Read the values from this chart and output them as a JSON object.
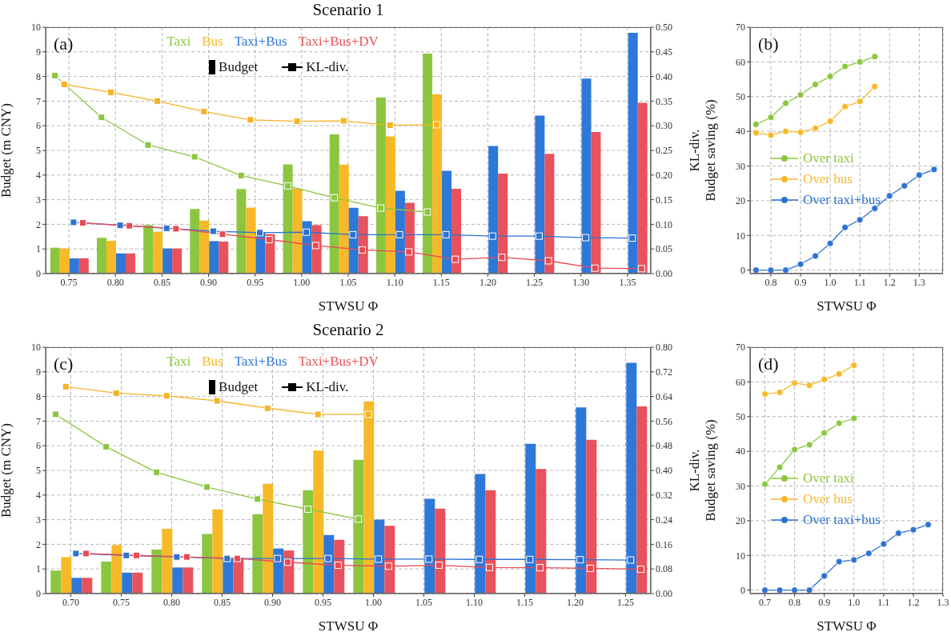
{
  "chart_data": [
    {
      "type": "bar",
      "title": "Scenario 1",
      "categories": [
        "0.75",
        "0.80",
        "0.85",
        "0.90",
        "0.95",
        "1.00",
        "1.05",
        "1.10",
        "1.15",
        "1.20",
        "1.25",
        "1.30",
        "1.35"
      ],
      "xlabel": "STWSU Φ",
      "ylabel": "Budget (m CNY)",
      "y2label": "KL-div.",
      "ylim": [
        0,
        10
      ],
      "yticks": [
        0,
        1,
        2,
        3,
        4,
        5,
        6,
        7,
        8,
        9,
        10
      ],
      "y2lim": [
        0,
        0.5
      ],
      "y2ticks": [
        {
          "value": 0,
          "label": "0.00"
        },
        0.05,
        {
          "value": 0.1,
          "label": "0.10"
        },
        0.15,
        {
          "value": 0.2,
          "label": "0.20"
        },
        0.25,
        {
          "value": 0.3,
          "label": "0.30"
        },
        0.35,
        {
          "value": 0.4,
          "label": "0.40"
        },
        0.45,
        {
          "value": 0.5,
          "label": "0.50"
        }
      ],
      "grid": true,
      "legend": "top",
      "marker": "square",
      "annotations": [
        "(a)",
        "Budget",
        "KL-div."
      ],
      "series": [
        {
          "name": "Taxi",
          "color": "#8cc63f",
          "values": [
            1.05,
            1.45,
            1.97,
            2.62,
            3.43,
            4.43,
            5.65,
            7.15,
            8.93,
            null,
            null,
            null,
            null
          ]
        },
        {
          "name": "Bus",
          "color": "#f7b928",
          "values": [
            1.02,
            1.33,
            1.7,
            2.15,
            2.68,
            3.45,
            4.42,
            5.57,
            7.28,
            null,
            null,
            null,
            null
          ]
        },
        {
          "name": "Taxi+Bus",
          "color": "#2d78d8",
          "values": [
            0.62,
            0.82,
            1.02,
            1.32,
            1.68,
            2.13,
            2.67,
            3.36,
            4.17,
            5.18,
            6.41,
            7.91,
            9.77
          ]
        },
        {
          "name": "Taxi+Bus+DV",
          "color": "#e8525c",
          "values": [
            0.62,
            0.82,
            1.02,
            1.3,
            1.6,
            1.97,
            2.33,
            2.87,
            3.44,
            4.06,
            4.86,
            5.75,
            6.93
          ]
        },
        {
          "type": "line",
          "axis": "y2",
          "color": "#8cc63f",
          "values": [
            0.402,
            0.317,
            0.261,
            0.237,
            0.199,
            0.178,
            0.154,
            0.133,
            0.125,
            null,
            null,
            null,
            null
          ]
        },
        {
          "type": "line",
          "axis": "y2",
          "color": "#f5b324",
          "values": [
            0.384,
            0.368,
            0.35,
            0.329,
            0.312,
            0.309,
            0.31,
            0.301,
            0.302,
            null,
            null,
            null,
            null
          ]
        },
        {
          "type": "line",
          "axis": "y2",
          "color": "#2d72d2",
          "values": [
            0.104,
            0.098,
            0.092,
            0.086,
            0.083,
            0.084,
            0.079,
            0.079,
            0.079,
            0.076,
            0.076,
            0.073,
            0.072
          ]
        },
        {
          "type": "line",
          "axis": "y2",
          "color": "#e84a55",
          "values": [
            0.103,
            0.097,
            0.091,
            0.08,
            0.069,
            0.057,
            0.048,
            0.044,
            0.029,
            0.033,
            0.026,
            0.011,
            0.01
          ]
        }
      ]
    },
    {
      "type": "line",
      "xlabel": "STWSU Φ",
      "ylabel": "Budget saving (%)",
      "xlim": [
        0.73,
        1.38
      ],
      "xticks": [
        0.8,
        0.9,
        {
          "value": 1,
          "label": "1.0"
        },
        1.1,
        1.2,
        1.3
      ],
      "ylim": [
        -1,
        70
      ],
      "yticks": [
        0,
        10,
        20,
        30,
        40,
        50,
        60,
        70
      ],
      "grid": true,
      "legend": "left",
      "marker": "circle",
      "annotations": [
        "(b)"
      ],
      "series": [
        {
          "name": "Over taxi",
          "color": "#8cc63f",
          "x": [
            0.75,
            0.8,
            0.85,
            0.9,
            0.95,
            1,
            1.05,
            1.1,
            1.15
          ],
          "values": [
            42,
            44,
            48.1,
            50.5,
            53.5,
            55.8,
            58.7,
            60,
            61.5
          ]
        },
        {
          "name": "Over bus",
          "color": "#f7b928",
          "x": [
            0.75,
            0.8,
            0.85,
            0.9,
            0.95,
            1,
            1.05,
            1.1,
            1.15
          ],
          "values": [
            39.6,
            38.9,
            40,
            39.7,
            40.9,
            42.9,
            47.1,
            48.6,
            52.9
          ]
        },
        {
          "name": "Over taxi+bus",
          "color": "#2d72d2",
          "x": [
            0.75,
            0.8,
            0.85,
            0.9,
            0.95,
            1,
            1.05,
            1.1,
            1.15,
            1.2,
            1.25,
            1.3,
            1.35
          ],
          "values": [
            0,
            0,
            0,
            1.7,
            4.1,
            7.7,
            12.3,
            14.5,
            17.8,
            21.4,
            24.3,
            27.4,
            29
          ]
        }
      ]
    },
    {
      "type": "bar",
      "title": "Scenario 2",
      "categories": [
        "0.70",
        "0.75",
        "0.80",
        "0.85",
        "0.90",
        "0.95",
        "1.00",
        "1.05",
        "1.10",
        "1.15",
        "1.20",
        "1.25"
      ],
      "xlabel": "STWSU Φ",
      "ylabel": "Budget (m CNY)",
      "y2label": "KL-div.",
      "ylim": [
        0,
        10
      ],
      "yticks": [
        0,
        1,
        2,
        3,
        4,
        5,
        6,
        7,
        8,
        9,
        10
      ],
      "y2lim": [
        0,
        0.8
      ],
      "y2ticks": [
        {
          "value": 0,
          "label": "0.00"
        },
        0.08,
        0.16,
        0.24,
        0.32,
        {
          "value": 0.4,
          "label": "0.40"
        },
        0.48,
        0.56,
        0.64,
        0.72,
        {
          "value": 0.8,
          "label": "0.80"
        }
      ],
      "grid": true,
      "legend": "top",
      "marker": "square",
      "annotations": [
        "(c)",
        "Budget",
        "KL-div."
      ],
      "series": [
        {
          "name": "Taxi",
          "color": "#8cc63f",
          "values": [
            0.93,
            1.3,
            1.79,
            2.42,
            3.22,
            4.2,
            5.43,
            null,
            null,
            null,
            null,
            null
          ]
        },
        {
          "name": "Bus",
          "color": "#f7b928",
          "values": [
            1.48,
            1.97,
            2.63,
            3.42,
            4.46,
            5.8,
            7.8,
            null,
            null,
            null,
            null,
            null
          ]
        },
        {
          "name": "Taxi+Bus",
          "color": "#2d78d8",
          "values": [
            0.64,
            0.85,
            1.06,
            1.42,
            1.83,
            2.38,
            3,
            3.85,
            4.85,
            6.08,
            7.56,
            9.37
          ]
        },
        {
          "name": "Taxi+Bus+DV",
          "color": "#e8525c",
          "values": [
            0.64,
            0.85,
            1.06,
            1.45,
            1.75,
            2.18,
            2.75,
            3.45,
            4.2,
            5.06,
            6.24,
            7.6
          ]
        },
        {
          "type": "line",
          "axis": "y2",
          "color": "#8cc63f",
          "values": [
            0.582,
            0.477,
            0.394,
            0.346,
            0.307,
            0.274,
            0.242,
            null,
            null,
            null,
            null,
            null
          ]
        },
        {
          "type": "line",
          "axis": "y2",
          "color": "#f5b324",
          "values": [
            0.672,
            0.651,
            0.642,
            0.626,
            0.602,
            0.582,
            0.582,
            null,
            null,
            null,
            null,
            null
          ]
        },
        {
          "type": "line",
          "axis": "y2",
          "color": "#2d72d2",
          "values": [
            0.13,
            0.124,
            0.119,
            0.114,
            0.114,
            0.114,
            0.112,
            0.112,
            0.111,
            0.111,
            0.11,
            0.109
          ]
        },
        {
          "type": "line",
          "axis": "y2",
          "color": "#e84a55",
          "values": [
            0.13,
            0.124,
            0.119,
            0.114,
            0.102,
            0.092,
            0.089,
            0.092,
            0.085,
            0.084,
            0.082,
            0.079
          ]
        }
      ]
    },
    {
      "type": "line",
      "xlabel": "STWSU Φ",
      "ylabel": "Budget saving (%)",
      "xlim": [
        0.65,
        1.3
      ],
      "xticks": [
        0.7,
        0.8,
        0.9,
        {
          "value": 1,
          "label": "1.0"
        },
        1.1,
        1.2,
        1.3
      ],
      "ylim": [
        -1,
        70
      ],
      "yticks": [
        0,
        10,
        20,
        30,
        40,
        50,
        60,
        70
      ],
      "grid": true,
      "legend": "left",
      "marker": "circle",
      "annotations": [
        "(d)"
      ],
      "series": [
        {
          "name": "Over taxi",
          "color": "#8cc63f",
          "x": [
            0.7,
            0.75,
            0.8,
            0.85,
            0.9,
            0.95,
            1
          ],
          "values": [
            30.5,
            35.4,
            40.5,
            41.9,
            45.3,
            48.1,
            49.5
          ]
        },
        {
          "name": "Over bus",
          "color": "#f7b928",
          "x": [
            0.7,
            0.75,
            0.8,
            0.85,
            0.9,
            0.95,
            1
          ],
          "values": [
            56.5,
            57,
            59.7,
            59,
            60.7,
            62.3,
            64.8
          ]
        },
        {
          "name": "Over taxi+bus",
          "color": "#2d72d2",
          "x": [
            0.7,
            0.75,
            0.8,
            0.85,
            0.9,
            0.95,
            1,
            1.05,
            1.1,
            1.15,
            1.2,
            1.25
          ],
          "values": [
            0,
            0,
            0,
            0,
            4.1,
            8.2,
            8.7,
            10.6,
            13.3,
            16.4,
            17.4,
            18.9
          ]
        }
      ]
    }
  ]
}
